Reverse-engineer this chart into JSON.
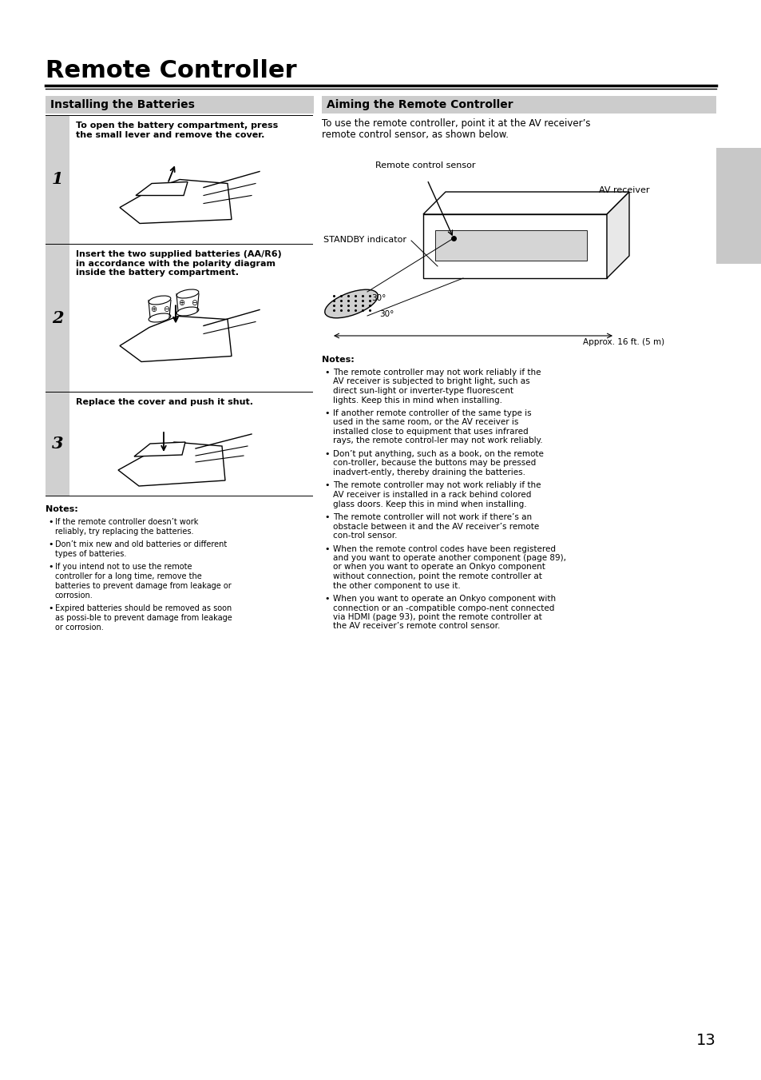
{
  "page_bg": "#ffffff",
  "title": "Remote Controller",
  "title_fontsize": 22,
  "section_left_title": "Installing the Batteries",
  "section_right_title": "Aiming the Remote Controller",
  "section_header_bg": "#cccccc",
  "section_header_fontsize": 10,
  "step1_num": "1",
  "step1_text": "To open the battery compartment, press\nthe small lever and remove the cover.",
  "step2_num": "2",
  "step2_text": "Insert the two supplied batteries (AA/R6)\nin accordance with the polarity diagram\ninside the battery compartment.",
  "step3_num": "3",
  "step3_text": "Replace the cover and push it shut.",
  "left_notes_title": "Notes:",
  "left_notes": [
    "If the remote controller doesn’t work reliably, try replacing the batteries.",
    "Don’t mix new and old batteries or different types of batteries.",
    "If you intend not to use the remote controller for a long time, remove the batteries to prevent damage from leakage or corrosion.",
    "Expired batteries should be removed as soon as possi-ble to prevent damage from leakage or corrosion."
  ],
  "aiming_intro_line1": "To use the remote controller, point it at the AV receiver’s",
  "aiming_intro_line2": "remote control sensor, as shown below.",
  "aiming_label_sensor": "Remote control sensor",
  "aiming_label_av": "AV receiver",
  "aiming_label_standby": "STANDBY indicator",
  "aiming_label_approx": "Approx. 16 ft. (5 m)",
  "aiming_angle1": "30°",
  "aiming_angle2": "30°",
  "right_notes_title": "Notes:",
  "right_notes": [
    "The remote controller may not work reliably if the AV receiver is subjected to bright light, such as direct sun-light or inverter-type fluorescent lights. Keep this in mind when installing.",
    "If another remote controller of the same type is used in the same room, or the AV receiver is installed close to equipment that uses infrared rays, the remote control-ler may not work reliably.",
    "Don’t put anything, such as a book, on the remote con-troller, because the buttons may be pressed inadvert-ently, thereby draining the batteries.",
    "The remote controller may not work reliably if the AV receiver is installed in a rack behind colored glass doors. Keep this in mind when installing.",
    "The remote controller will not work if there’s an obstacle between it and the AV receiver’s remote con-trol sensor.",
    "When the remote control codes have been registered and you want to operate another component (page 89), or when you want to operate an Onkyo component without     connection, point the remote controller at the other component to use it.",
    "When you want to operate an Onkyo component with     connection or an      -compatible compo-nent connected via HDMI (page 93), point the remote controller at the AV receiver’s remote control sensor."
  ],
  "page_number": "13"
}
